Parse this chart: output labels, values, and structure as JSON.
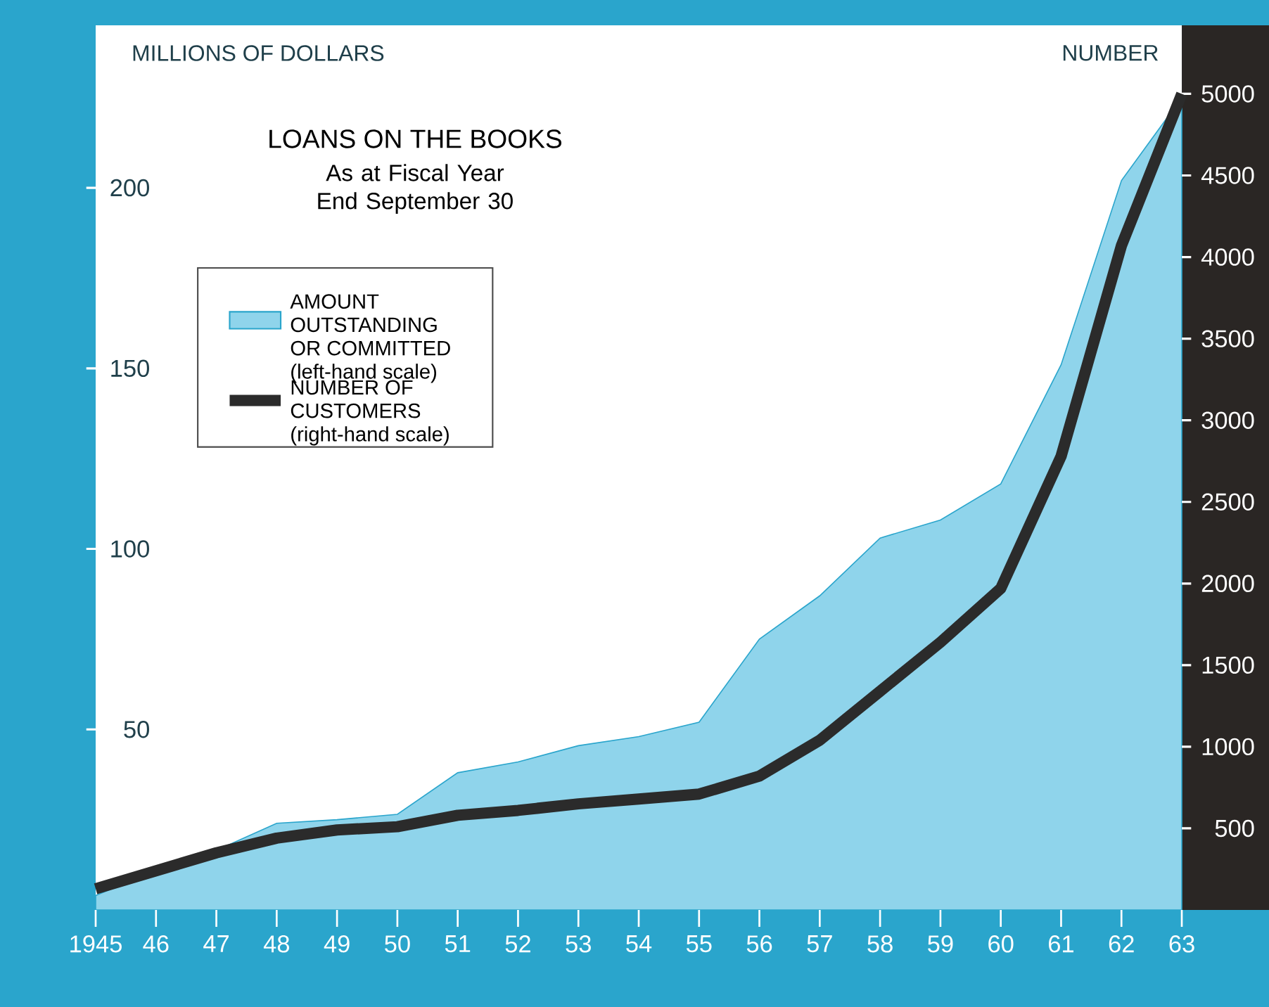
{
  "chart_data": {
    "type": "area",
    "title": "LOANS ON THE BOOKS",
    "subtitle": "As at Fiscal Year End September 30",
    "ylabel": "MILLIONS OF DOLLARS",
    "y2label": "NUMBER",
    "x": [
      1945,
      1946,
      1947,
      1948,
      1949,
      1950,
      1951,
      1952,
      1953,
      1954,
      1955,
      1956,
      1957,
      1958,
      1959,
      1960,
      1961,
      1962,
      1963
    ],
    "series": [
      {
        "name": "AMOUNT OUTSTANDING OR COMMITTED (left-hand scale)",
        "color": "#8fd4eb",
        "values": [
          4,
          11,
          16.5,
          24,
          25,
          26.5,
          38,
          41,
          45.5,
          48,
          52,
          75,
          87,
          103,
          108,
          118,
          151,
          202,
          225
        ]
      },
      {
        "name": "NUMBER OF CUSTOMERS (right-hand scale)",
        "type": "line",
        "axis": "y2",
        "color": "#2b2b2b",
        "values": [
          130,
          240,
          350,
          440,
          490,
          510,
          580,
          610,
          650,
          680,
          710,
          820,
          1040,
          1340,
          1640,
          1970,
          2780,
          4070,
          5000
        ]
      }
    ],
    "xlim": [
      1945,
      1963
    ],
    "xticks": [
      1945,
      {
        "value": 1946,
        "label": "46"
      },
      {
        "value": 1947,
        "label": "47"
      },
      {
        "value": 1948,
        "label": "48"
      },
      {
        "value": 1949,
        "label": "49"
      },
      {
        "value": 1950,
        "label": "50"
      },
      {
        "value": 1951,
        "label": "51"
      },
      {
        "value": 1952,
        "label": "52"
      },
      {
        "value": 1953,
        "label": "53"
      },
      {
        "value": 1954,
        "label": "54"
      },
      {
        "value": 1955,
        "label": "55"
      },
      {
        "value": 1956,
        "label": "56"
      },
      {
        "value": 1957,
        "label": "57"
      },
      {
        "value": 1958,
        "label": "58"
      },
      {
        "value": 1959,
        "label": "59"
      },
      {
        "value": 1960,
        "label": "60"
      },
      {
        "value": 1961,
        "label": "61"
      },
      {
        "value": 1962,
        "label": "62"
      },
      {
        "value": 1963,
        "label": "63"
      }
    ],
    "ylim": [
      0,
      245
    ],
    "yticks": [
      50,
      100,
      150,
      200
    ],
    "y2lim": [
      0,
      5420
    ],
    "y2ticks": [
      500,
      1000,
      1500,
      2000,
      2500,
      3000,
      3500,
      4000,
      4500,
      5000
    ],
    "legend": "top left"
  }
}
